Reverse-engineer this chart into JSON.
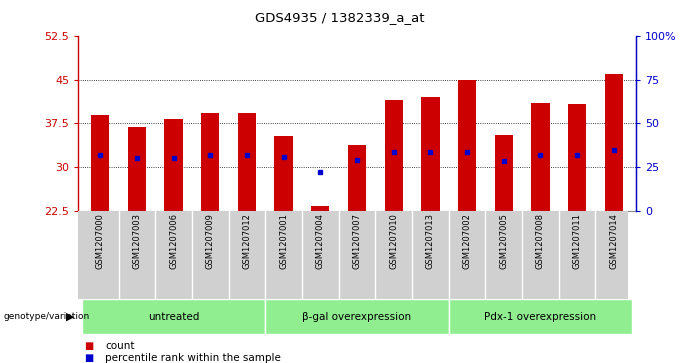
{
  "title": "GDS4935 / 1382339_a_at",
  "samples": [
    "GSM1207000",
    "GSM1207003",
    "GSM1207006",
    "GSM1207009",
    "GSM1207012",
    "GSM1207001",
    "GSM1207004",
    "GSM1207007",
    "GSM1207010",
    "GSM1207013",
    "GSM1207002",
    "GSM1207005",
    "GSM1207008",
    "GSM1207011",
    "GSM1207014"
  ],
  "counts": [
    38.9,
    36.8,
    38.2,
    39.3,
    39.3,
    35.3,
    23.2,
    33.7,
    41.5,
    42.0,
    45.0,
    35.5,
    41.0,
    40.8,
    46.0
  ],
  "percentile": [
    32.0,
    31.5,
    31.5,
    32.0,
    32.0,
    31.8,
    29.1,
    31.2,
    32.5,
    32.5,
    32.5,
    31.0,
    32.0,
    32.0,
    33.0
  ],
  "count_base": 22.5,
  "ylim_left": [
    22.5,
    52.5
  ],
  "yticks_left": [
    22.5,
    30,
    37.5,
    45,
    52.5
  ],
  "ytick_labels_left": [
    "22.5",
    "30",
    "37.5",
    "45",
    "52.5"
  ],
  "yticks_right_vals": [
    22.5,
    30,
    37.5,
    45,
    52.5
  ],
  "ytick_labels_right": [
    "0",
    "25",
    "50",
    "75",
    "100%"
  ],
  "groups": [
    {
      "label": "untreated",
      "start": 0,
      "end": 4
    },
    {
      "label": "β-gal overexpression",
      "start": 5,
      "end": 9
    },
    {
      "label": "Pdx-1 overexpression",
      "start": 10,
      "end": 14
    }
  ],
  "bar_color": "#cc0000",
  "marker_color": "#0000cc",
  "bg_plot": "#ffffff",
  "bg_label": "#d0d0d0",
  "bg_group": "#90ee90",
  "title_color": "#000000",
  "left_axis_color": "#cc0000",
  "right_axis_color": "#0000cc",
  "grid_color": "#000000"
}
